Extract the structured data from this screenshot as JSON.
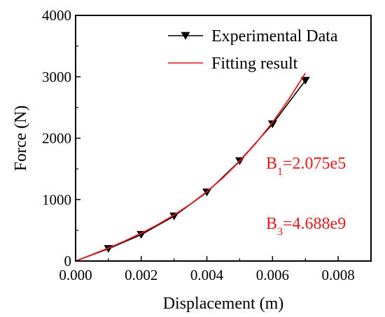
{
  "chart_data": {
    "type": "line",
    "xlabel": "Displacement (m)",
    "ylabel": "Force (N)",
    "xlim": [
      0,
      0.009
    ],
    "ylim": [
      0,
      4000
    ],
    "xticks": [
      "0.000",
      "0.002",
      "0.004",
      "0.006",
      "0.008"
    ],
    "yticks": [
      "0",
      "1000",
      "2000",
      "3000",
      "4000"
    ],
    "grid": false,
    "legend_position": "top-right",
    "series": [
      {
        "name": "Experimental Data",
        "style": "line-with-inverted-triangle-markers",
        "color": "#000000",
        "x": [
          0.0,
          0.001,
          0.002,
          0.003,
          0.004,
          0.005,
          0.006,
          0.007
        ],
        "y": [
          0,
          200,
          430,
          730,
          1120,
          1630,
          2230,
          2940
        ]
      },
      {
        "name": "Fitting result",
        "style": "line",
        "color": "#e31a1c",
        "x": [
          0.0,
          0.0005,
          0.001,
          0.0015,
          0.002,
          0.0025,
          0.003,
          0.0035,
          0.004,
          0.0045,
          0.005,
          0.0055,
          0.006,
          0.0065,
          0.007
        ],
        "y": [
          0,
          104,
          212,
          327,
          453,
          592,
          749,
          927,
          1130,
          1361,
          1624,
          1922,
          2258,
          2637,
          3060
        ]
      }
    ],
    "annotations": [
      {
        "base": "B",
        "sub": "1",
        "rest": "=2.075e5",
        "color": "#e31a1c"
      },
      {
        "base": "B",
        "sub": "3",
        "rest": "=4.688e9",
        "color": "#e31a1c"
      }
    ]
  }
}
